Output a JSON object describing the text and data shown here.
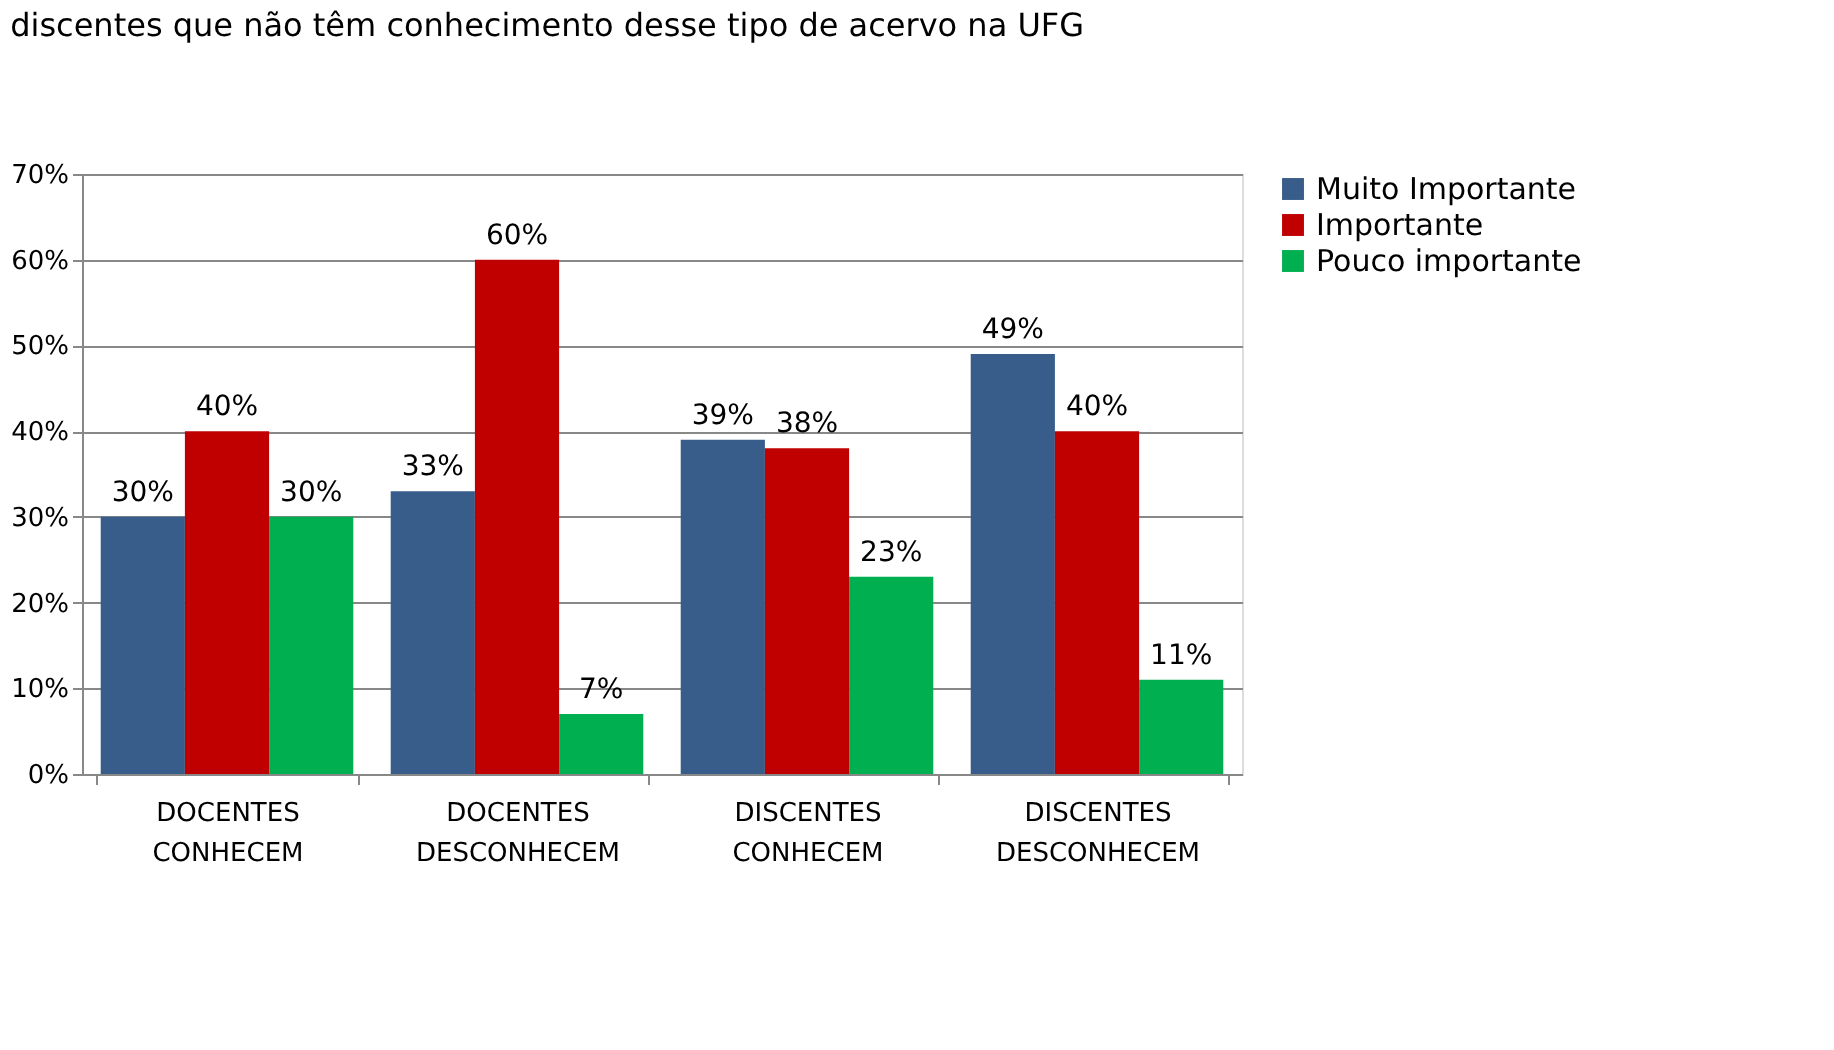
{
  "chart_data": {
    "type": "bar",
    "title": "discentes que não têm conhecimento desse tipo de acervo na UFG",
    "categories": [
      "DOCENTES CONHECEM",
      "DOCENTES DESCONHECEM",
      "DISCENTES CONHECEM",
      "DISCENTES DESCONHECEM"
    ],
    "series": [
      {
        "name": "Muito Importante",
        "color": "#385d8a",
        "values": [
          30,
          33,
          39,
          49
        ],
        "value_labels": [
          "30%",
          "33%",
          "39%",
          "49%"
        ]
      },
      {
        "name": "Importante",
        "color": "#c00000",
        "values": [
          40,
          60,
          38,
          40
        ],
        "value_labels": [
          "40%",
          "60%",
          "38%",
          "40%"
        ]
      },
      {
        "name": "Pouco importante",
        "color": "#00b050",
        "values": [
          30,
          7,
          23,
          11
        ],
        "value_labels": [
          "30%",
          "7%",
          "23%",
          "11%"
        ]
      }
    ],
    "ylim": [
      0,
      70
    ],
    "yticks": [
      {
        "value": 0,
        "label": "0%"
      },
      {
        "value": 10,
        "label": "10%"
      },
      {
        "value": 20,
        "label": "20%"
      },
      {
        "value": 30,
        "label": "30%"
      },
      {
        "value": 40,
        "label": "40%"
      },
      {
        "value": 50,
        "label": "50%"
      },
      {
        "value": 60,
        "label": "60%"
      },
      {
        "value": 70,
        "label": "70%"
      }
    ],
    "grid": "y",
    "legend": "right"
  }
}
